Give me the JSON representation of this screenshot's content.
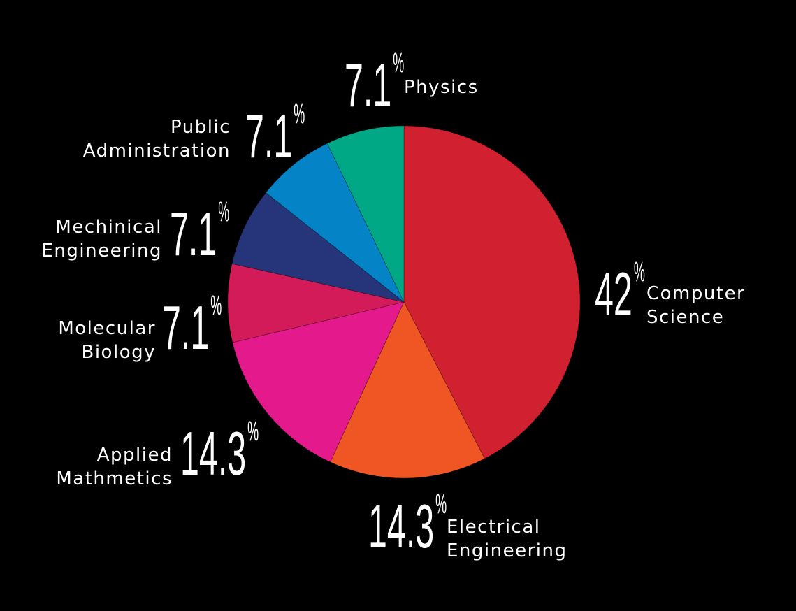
{
  "chart_data": {
    "type": "pie",
    "title": "",
    "start_angle_deg": 0,
    "direction": "clockwise",
    "slices": [
      {
        "label_lines": [
          "Computer",
          "Science"
        ],
        "value": 42,
        "value_label": "42",
        "unit": "%",
        "color": "#d12131"
      },
      {
        "label_lines": [
          "Electrical",
          "Engineering"
        ],
        "value": 14.3,
        "value_label": "14.3",
        "unit": "%",
        "color": "#ef5624"
      },
      {
        "label_lines": [
          "Applied",
          "Mathmetics"
        ],
        "value": 14.3,
        "value_label": "14.3",
        "unit": "%",
        "color": "#e3198c"
      },
      {
        "label_lines": [
          "Molecular",
          "Biology"
        ],
        "value": 7.1,
        "value_label": "7.1",
        "unit": "%",
        "color": "#d41b59"
      },
      {
        "label_lines": [
          "Mechinical",
          "Engineering"
        ],
        "value": 7.1,
        "value_label": "7.1",
        "unit": "%",
        "color": "#263579"
      },
      {
        "label_lines": [
          "Public",
          "Administration"
        ],
        "value": 7.1,
        "value_label": "7.1",
        "unit": "%",
        "color": "#0484c6"
      },
      {
        "label_lines": [
          "Physics"
        ],
        "value": 7.1,
        "value_label": "7.1",
        "unit": "%",
        "color": "#00a886"
      }
    ]
  }
}
